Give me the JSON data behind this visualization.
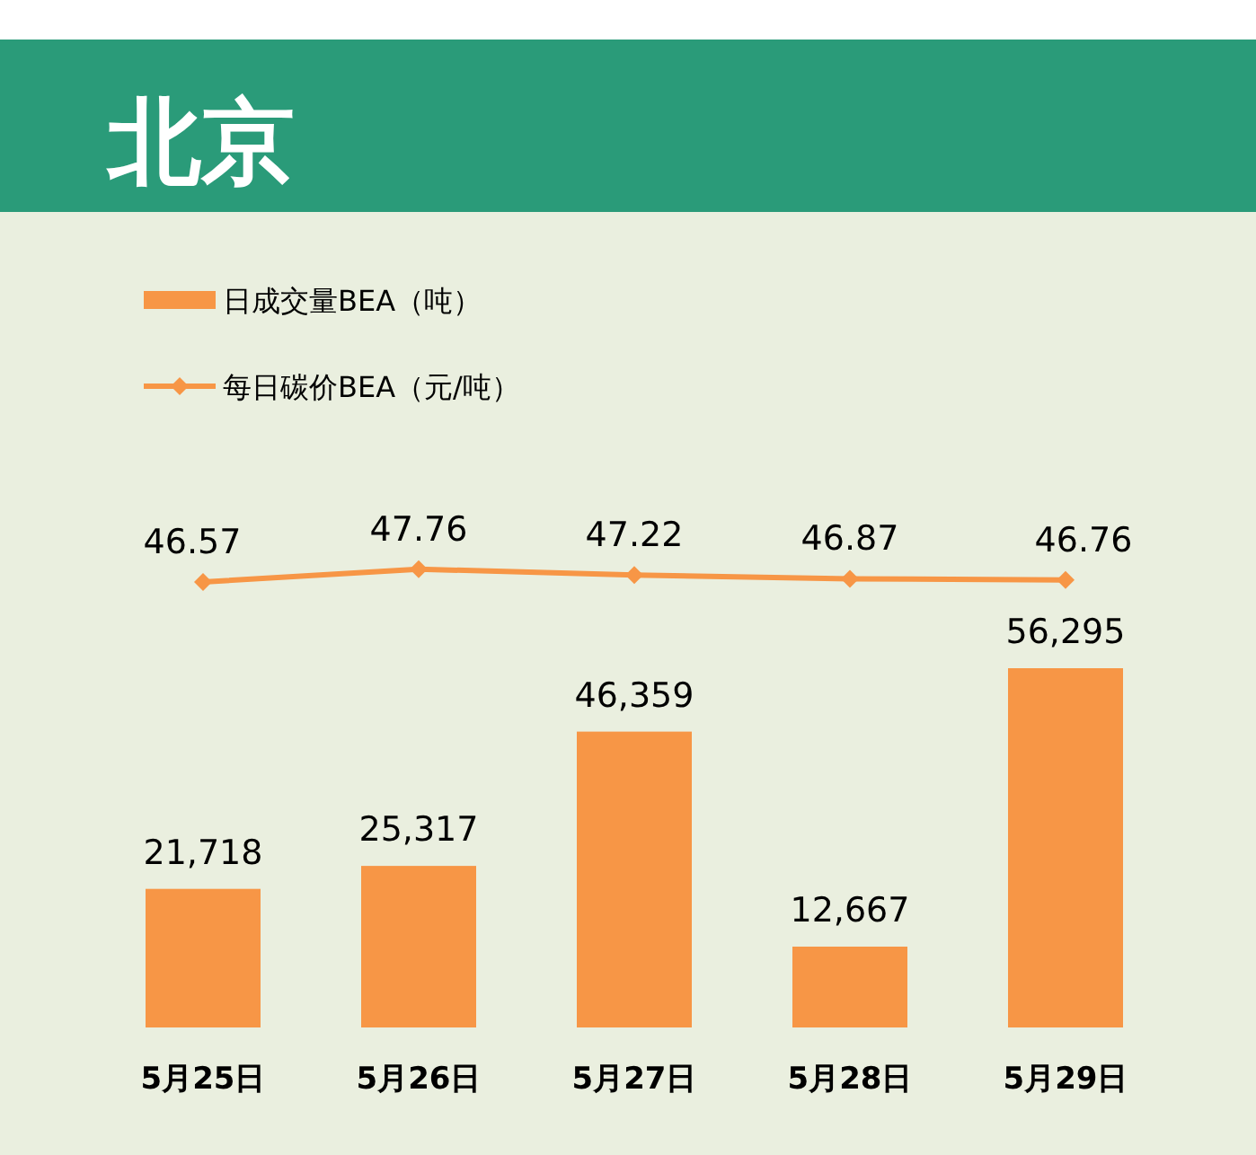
{
  "chart_data": [
    {
      "type": "line",
      "title": "北京",
      "categories": [
        null,
        null,
        null,
        null,
        null
      ],
      "series": [
        {
          "name": "每日碳价BEA（元/吨）",
          "color": "#f79646",
          "values": [
            46.57,
            47.76,
            47.22,
            46.87,
            46.76
          ]
        }
      ],
      "marker": "diamond",
      "data_labels": true,
      "tick_labels": false,
      "legend": "top left"
    },
    {
      "type": "bar",
      "categories": [
        "5月25日",
        "5月26日",
        "5月27日",
        "5月28日",
        "5月29日"
      ],
      "series": [
        {
          "name": "日成交量BEA（吨）",
          "color": "#f79646",
          "values": [
            21718,
            25317,
            46359,
            12667,
            56295
          ],
          "value_labels": [
            "21,718",
            "25,317",
            "46,359",
            "12,667",
            "56,295"
          ]
        }
      ],
      "tick_labels": "x",
      "legend": "top left"
    }
  ]
}
